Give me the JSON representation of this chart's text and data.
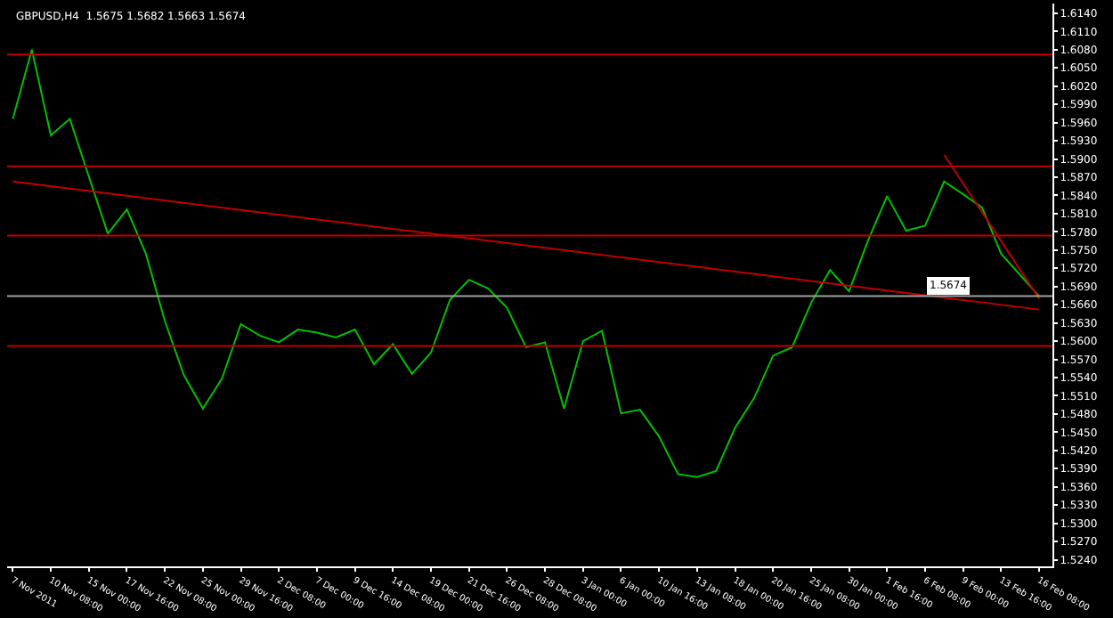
{
  "chart_data": {
    "type": "line",
    "title": "GBPUSD,H4  1.5675 1.5682 1.5663 1.5674",
    "categories": [
      "7 Nov 2011",
      null,
      "10 Nov 08:00",
      null,
      "15 Nov 00:00",
      null,
      "17 Nov 16:00",
      null,
      "22 Nov 08:00",
      null,
      "25 Nov 00:00",
      null,
      "29 Nov 16:00",
      null,
      "2 Dec 08:00",
      null,
      "7 Dec 00:00",
      null,
      "9 Dec 16:00",
      null,
      "14 Dec 08:00",
      null,
      "19 Dec 00:00",
      null,
      "21 Dec 16:00",
      null,
      "26 Dec 08:00",
      null,
      "28 Dec 08:00",
      null,
      "3 Jan 00:00",
      null,
      "6 Jan 00:00",
      null,
      "10 Jan 16:00",
      null,
      "13 Jan 08:00",
      null,
      "18 Jan 00:00",
      null,
      "20 Jan 16:00",
      null,
      "25 Jan 08:00",
      null,
      "30 Jan 00:00",
      null,
      "1 Feb 16:00",
      null,
      "6 Feb 08:00",
      null,
      "9 Feb 00:00",
      null,
      "13 Feb 16:00",
      null,
      "16 Feb 08:00"
    ],
    "series": [
      {
        "color": "#00c000",
        "values": [
          1.5966,
          1.608,
          1.5939,
          1.5966,
          1.5871,
          1.5777,
          1.5817,
          1.5744,
          1.5633,
          1.5544,
          1.5489,
          1.5538,
          1.5628,
          1.5609,
          1.5598,
          1.5619,
          1.5614,
          1.5606,
          1.5619,
          1.5562,
          1.5595,
          1.5546,
          1.5581,
          1.5668,
          1.5701,
          1.5687,
          1.5655,
          1.559,
          1.5598,
          1.5489,
          1.56,
          1.5617,
          1.5481,
          1.5487,
          1.5443,
          1.5381,
          1.5376,
          1.5386,
          1.5457,
          1.5506,
          1.5576,
          1.559,
          1.5663,
          1.5717,
          1.5682,
          1.5766,
          1.5839,
          1.5782,
          1.579,
          1.5863,
          1.5842,
          1.582,
          1.5744,
          1.5709,
          1.5674
        ]
      },
      {
        "color": "#c00000",
        "values": [
          1.5863,
          null,
          null,
          null,
          null,
          null,
          null,
          null,
          null,
          null,
          null,
          null,
          null,
          null,
          null,
          null,
          null,
          null,
          null,
          null,
          null,
          null,
          null,
          null,
          null,
          null,
          null,
          null,
          null,
          null,
          null,
          null,
          null,
          null,
          null,
          null,
          null,
          null,
          null,
          null,
          null,
          null,
          null,
          null,
          null,
          null,
          null,
          null,
          null,
          null,
          null,
          null,
          null,
          null,
          1.5652
        ]
      },
      {
        "color": "#c00000",
        "values": [
          null,
          null,
          null,
          null,
          null,
          null,
          null,
          null,
          null,
          null,
          null,
          null,
          null,
          null,
          null,
          null,
          null,
          null,
          null,
          null,
          null,
          null,
          null,
          null,
          null,
          null,
          null,
          null,
          null,
          null,
          null,
          null,
          null,
          null,
          null,
          null,
          null,
          null,
          null,
          null,
          null,
          null,
          null,
          null,
          null,
          null,
          null,
          null,
          null,
          1.5907,
          null,
          null,
          null,
          null,
          1.567
        ]
      }
    ],
    "ylim": [
      1.5229,
      1.6156
    ],
    "yticks": [
      {
        "value": 1.524,
        "label": "1.5240"
      },
      {
        "value": 1.527,
        "label": "1.5270"
      },
      {
        "value": 1.53,
        "label": "1.5300"
      },
      {
        "value": 1.533,
        "label": "1.5330"
      },
      {
        "value": 1.536,
        "label": "1.5360"
      },
      {
        "value": 1.539,
        "label": "1.5390"
      },
      {
        "value": 1.542,
        "label": "1.5420"
      },
      {
        "value": 1.545,
        "label": "1.5450"
      },
      {
        "value": 1.548,
        "label": "1.5480"
      },
      {
        "value": 1.551,
        "label": "1.5510"
      },
      {
        "value": 1.554,
        "label": "1.5540"
      },
      {
        "value": 1.557,
        "label": "1.5570"
      },
      {
        "value": 1.56,
        "label": "1.5600"
      },
      {
        "value": 1.563,
        "label": "1.5630"
      },
      {
        "value": 1.566,
        "label": "1.5660"
      },
      {
        "value": 1.569,
        "label": "1.5690"
      },
      {
        "value": 1.572,
        "label": "1.5720"
      },
      {
        "value": 1.575,
        "label": "1.5750"
      },
      {
        "value": 1.578,
        "label": "1.5780"
      },
      {
        "value": 1.581,
        "label": "1.5810"
      },
      {
        "value": 1.584,
        "label": "1.5840"
      },
      {
        "value": 1.587,
        "label": "1.5870"
      },
      {
        "value": 1.59,
        "label": "1.5900"
      },
      {
        "value": 1.593,
        "label": "1.5930"
      },
      {
        "value": 1.596,
        "label": "1.5960"
      },
      {
        "value": 1.599,
        "label": "1.5990"
      },
      {
        "value": 1.602,
        "label": "1.6020"
      },
      {
        "value": 1.605,
        "label": "1.6050"
      },
      {
        "value": 1.608,
        "label": "1.6080"
      },
      {
        "value": 1.611,
        "label": "1.6110"
      },
      {
        "value": 1.614,
        "label": "1.6140"
      }
    ],
    "ref_lines": [
      {
        "axis": "y",
        "value": 1.6072,
        "color": "#c00000"
      },
      {
        "axis": "y",
        "value": 1.5888,
        "color": "#c00000"
      },
      {
        "axis": "y",
        "value": 1.5774,
        "color": "#c00000"
      },
      {
        "axis": "y",
        "value": 1.5592,
        "color": "#c00000"
      },
      {
        "axis": "y",
        "value": 1.5674,
        "color": "#a0a0a0",
        "label": "1.5674"
      }
    ]
  }
}
